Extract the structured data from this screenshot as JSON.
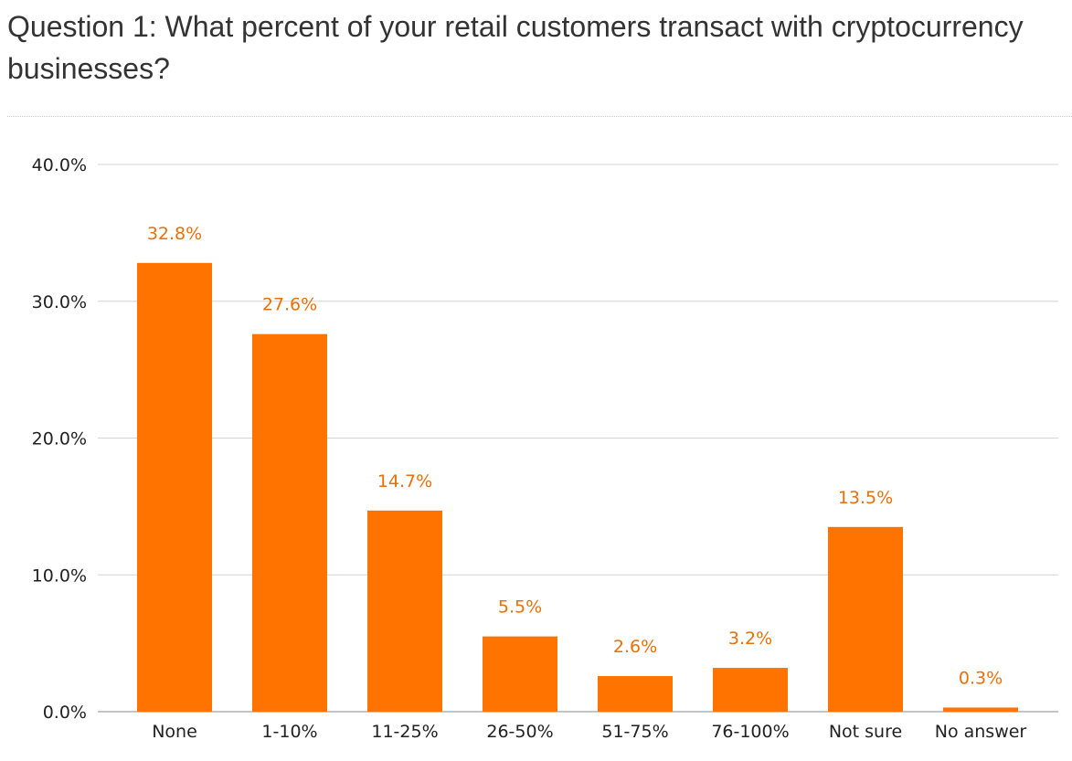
{
  "question": {
    "text": "Question 1: What percent of your retail customers transact with cryptocurrency businesses?"
  },
  "colors": {
    "bar": "#ff7300",
    "value_label": "#e8700a",
    "grid": "#d4d4d4",
    "axis": "#888888",
    "text": "#222222"
  },
  "chart_data": {
    "type": "bar",
    "title": "",
    "xlabel": "",
    "ylabel": "",
    "categories": [
      "None",
      "1-10%",
      "11-25%",
      "26-50%",
      "51-75%",
      "76-100%",
      "Not sure",
      "No answer"
    ],
    "values": [
      32.8,
      27.6,
      14.7,
      5.5,
      2.6,
      3.2,
      13.5,
      0.3
    ],
    "value_labels": [
      "32.8%",
      "27.6%",
      "14.7%",
      "5.5%",
      "2.6%",
      "3.2%",
      "13.5%",
      "0.3%"
    ],
    "ylim": [
      0,
      40
    ],
    "yticks": [
      0,
      10,
      20,
      30,
      40
    ],
    "ytick_labels": [
      "0.0%",
      "10.0%",
      "20.0%",
      "30.0%",
      "40.0%"
    ],
    "grid": true,
    "legend": "none"
  }
}
